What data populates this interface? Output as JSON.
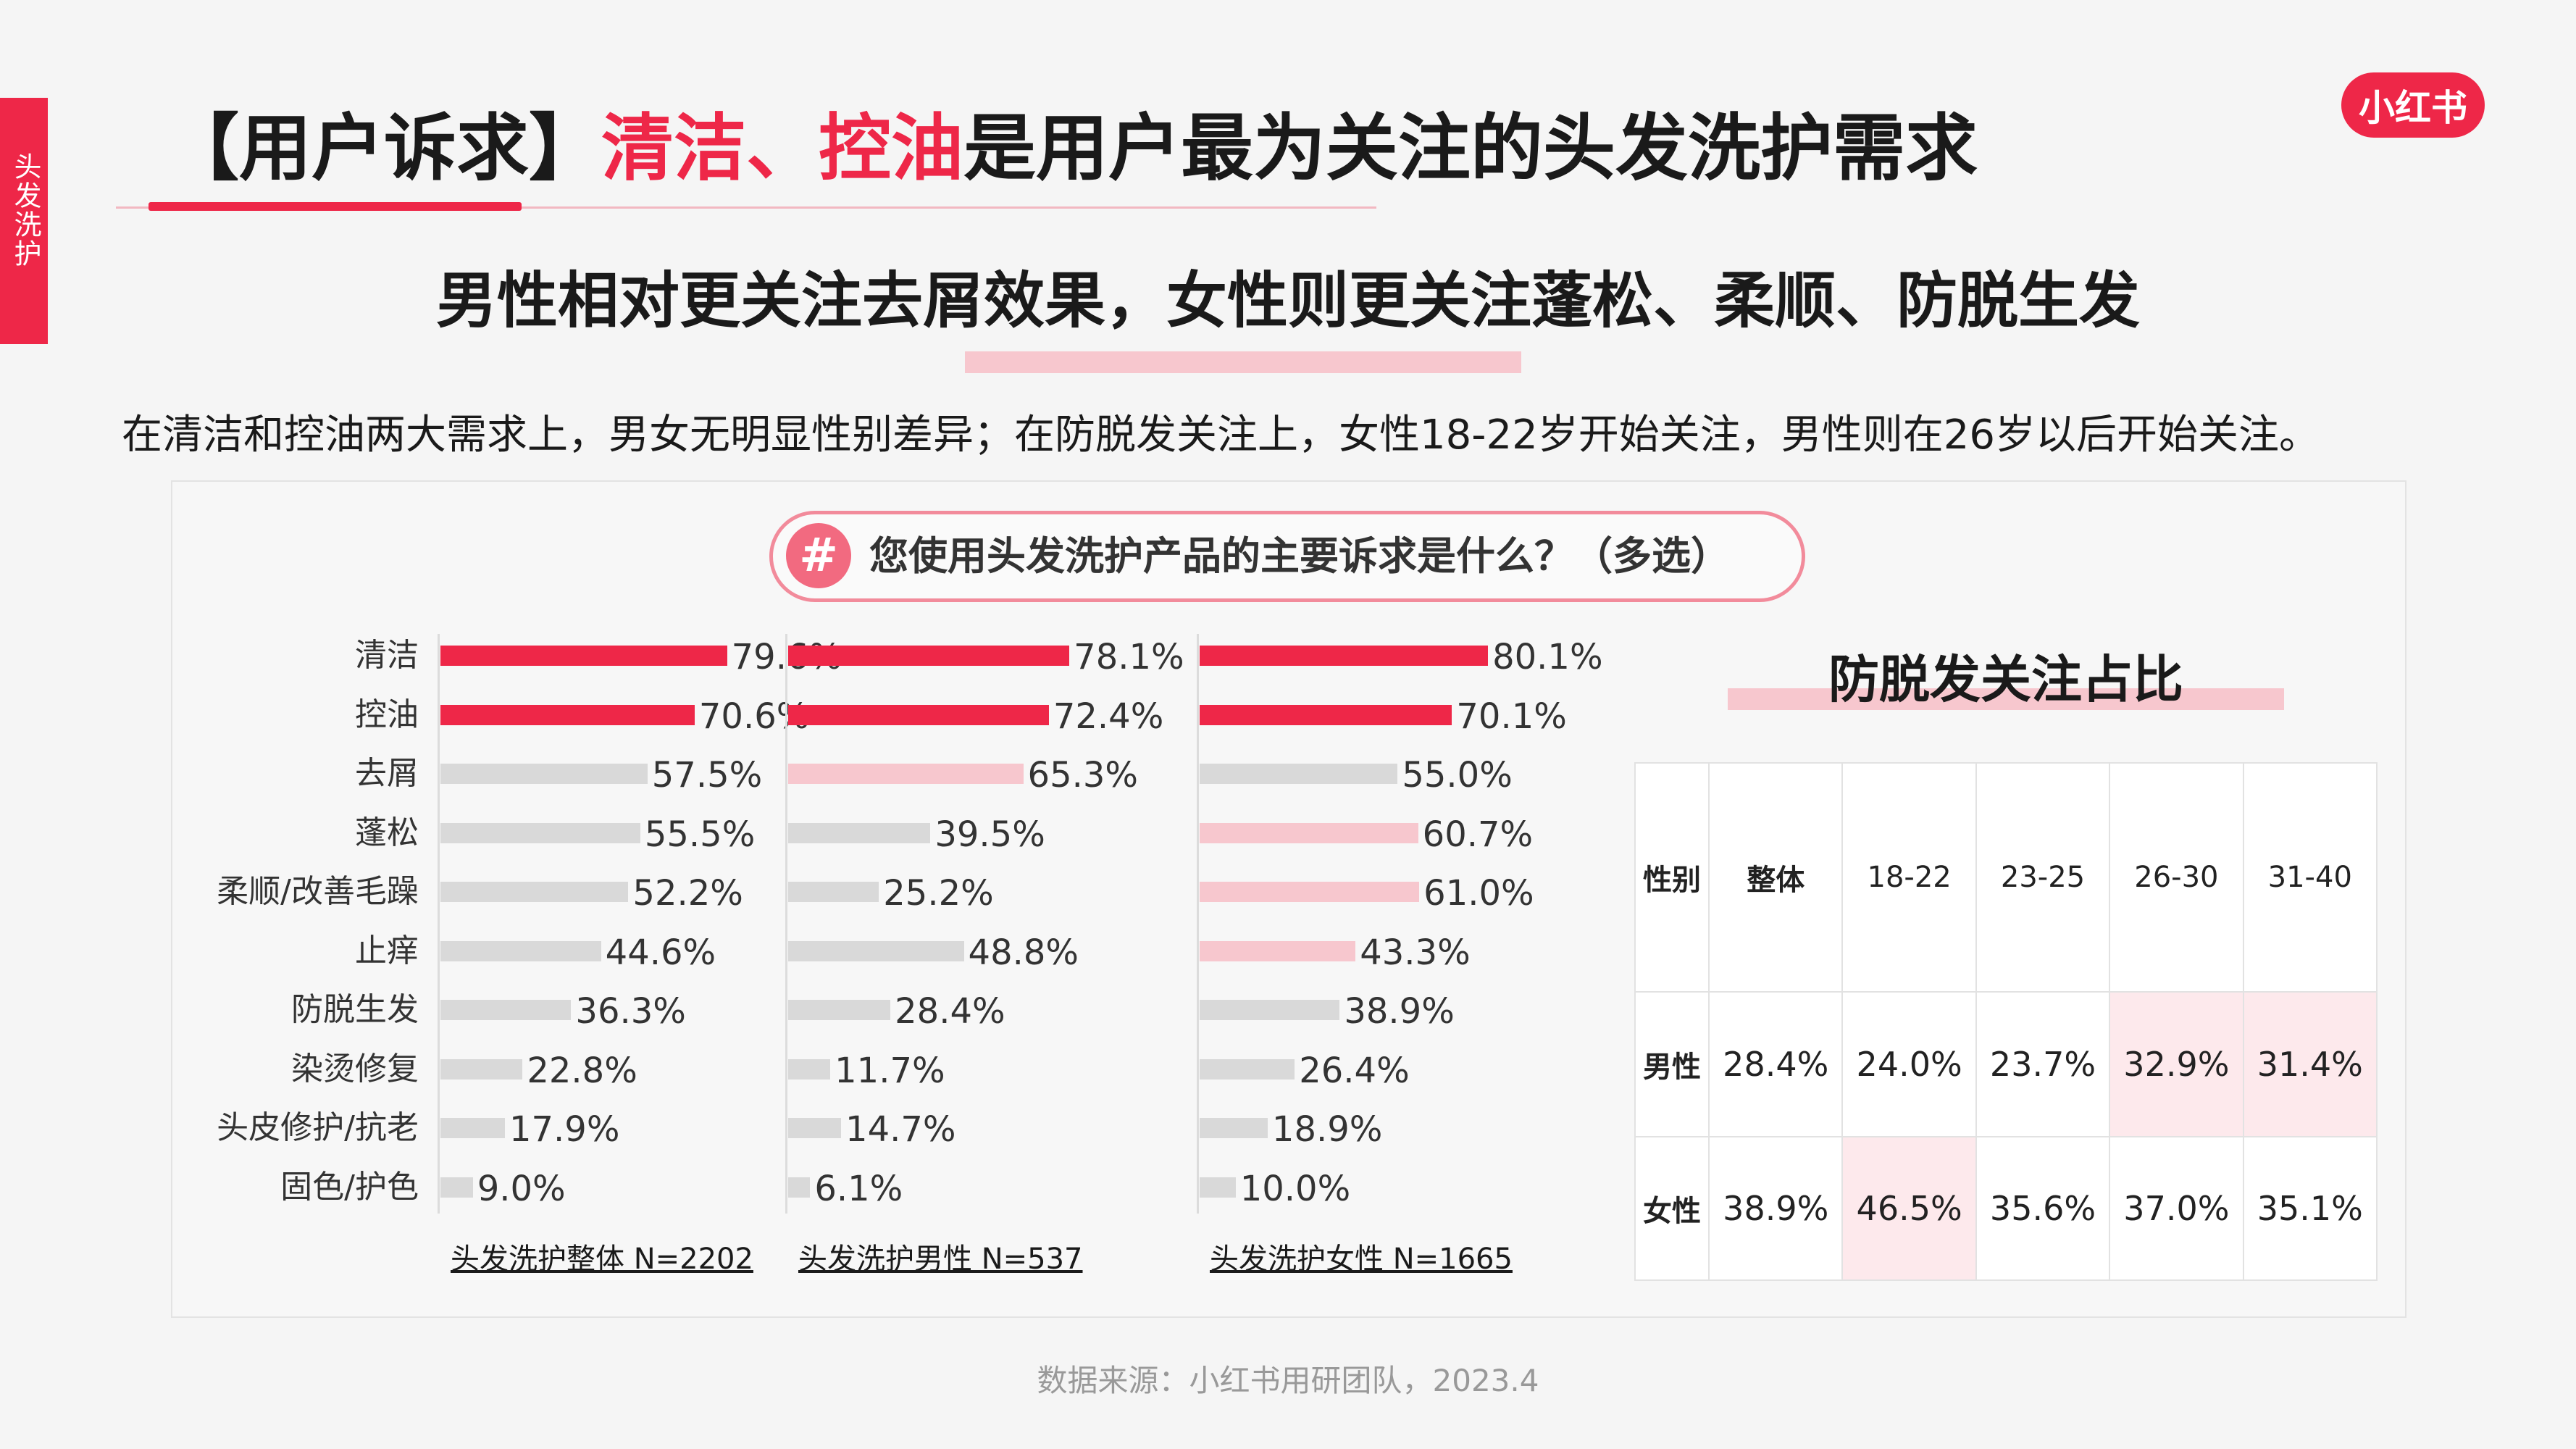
{
  "side_tab": "头发洗护",
  "title": {
    "prefix": "【用户诉求】",
    "highlight": "清洁、控油",
    "suffix": "是用户最为关注的头发洗护需求"
  },
  "logo": "小红书",
  "subtitle": "男性相对更关注去屑效果，女性则更关注蓬松、柔顺、防脱生发",
  "description": "在清洁和控油两大需求上，男女无明显性别差异；在防脱发关注上，女性18-22岁开始关注，男性则在26岁以后开始关注。",
  "question": {
    "icon": "#",
    "text": "您使用头发洗护产品的主要诉求是什么？（多选）"
  },
  "colors": {
    "accent": "#ee2748",
    "light_accent": "#f7c7ce",
    "neutral_bar": "#d9d9d9"
  },
  "chart_data": [
    {
      "type": "bar",
      "orientation": "horizontal",
      "categories": [
        "清洁",
        "控油",
        "去屑",
        "蓬松",
        "柔顺/改善毛躁",
        "止痒",
        "防脱生发",
        "染烫修复",
        "头皮修护/抗老",
        "固色/护色"
      ],
      "series": [
        {
          "name": "头发洗护整体 N=2202",
          "values": [
            79.6,
            70.6,
            57.5,
            55.5,
            52.2,
            44.6,
            36.3,
            22.8,
            17.9,
            9.0
          ],
          "labels": [
            "79.6%",
            "70.6%",
            "57.5%",
            "55.5%",
            "52.2%",
            "44.6%",
            "36.3%",
            "22.8%",
            "17.9%",
            "9.0%"
          ],
          "colors": [
            "#ee2748",
            "#ee2748",
            "#d9d9d9",
            "#d9d9d9",
            "#d9d9d9",
            "#d9d9d9",
            "#d9d9d9",
            "#d9d9d9",
            "#d9d9d9",
            "#d9d9d9"
          ]
        },
        {
          "name": "头发洗护男性 N=537",
          "values": [
            78.1,
            72.4,
            65.3,
            39.5,
            25.2,
            48.8,
            28.4,
            11.7,
            14.7,
            6.1
          ],
          "labels": [
            "78.1%",
            "72.4%",
            "65.3%",
            "39.5%",
            "25.2%",
            "48.8%",
            "28.4%",
            "11.7%",
            "14.7%",
            "6.1%"
          ],
          "colors": [
            "#ee2748",
            "#ee2748",
            "#f7c7ce",
            "#d9d9d9",
            "#d9d9d9",
            "#d9d9d9",
            "#d9d9d9",
            "#d9d9d9",
            "#d9d9d9",
            "#d9d9d9"
          ]
        },
        {
          "name": "头发洗护女性 N=1665",
          "values": [
            80.1,
            70.1,
            55.0,
            60.7,
            61.0,
            43.3,
            38.9,
            26.4,
            18.9,
            10.0
          ],
          "labels": [
            "80.1%",
            "70.1%",
            "55.0%",
            "60.7%",
            "61.0%",
            "43.3%",
            "38.9%",
            "26.4%",
            "18.9%",
            "10.0%"
          ],
          "colors": [
            "#ee2748",
            "#ee2748",
            "#d9d9d9",
            "#f7c7ce",
            "#f7c7ce",
            "#f7c7ce",
            "#d9d9d9",
            "#d9d9d9",
            "#d9d9d9",
            "#d9d9d9"
          ]
        }
      ],
      "unit": "%"
    },
    {
      "type": "table",
      "title": "防脱发关注占比",
      "columns": [
        "性别",
        "整体",
        "18-22",
        "23-25",
        "26-30",
        "31-40"
      ],
      "rows": [
        {
          "label": "男性",
          "values": [
            "28.4%",
            "24.0%",
            "23.7%",
            "32.9%",
            "31.4%"
          ],
          "highlight": [
            false,
            false,
            false,
            true,
            true
          ]
        },
        {
          "label": "女性",
          "values": [
            "38.9%",
            "46.5%",
            "35.6%",
            "37.0%",
            "35.1%"
          ],
          "highlight": [
            false,
            true,
            false,
            false,
            false
          ]
        }
      ]
    }
  ],
  "source": "数据来源：小红书用研团队，2023.4"
}
